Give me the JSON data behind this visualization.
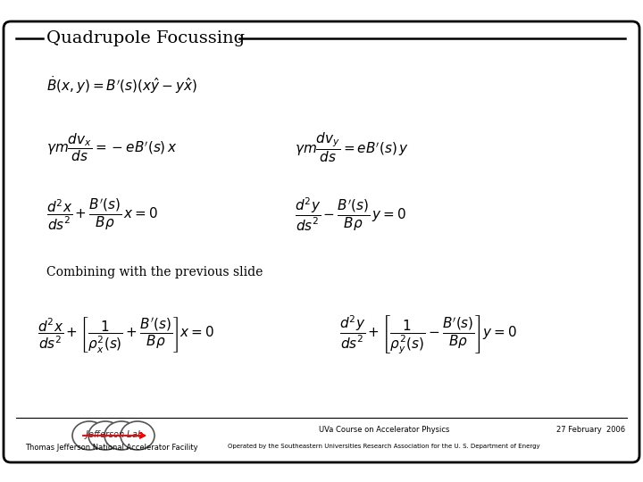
{
  "title": "Quadrupole Focussing",
  "background_color": "#ffffff",
  "border_color": "#000000",
  "text_color": "#000000",
  "combining_text": "Combining with the previous slide",
  "footer_left": "Thomas Jefferson National Accelerator Facility",
  "footer_center": "UVa Course on Accelerator Physics",
  "footer_right": "27 February  2006",
  "footer_center2": "Operated by the Southeastern Universities Research Association for the U. S. Department of Energy",
  "title_fontsize": 14,
  "eq_fontsize": 11,
  "combining_fontsize": 10,
  "footer_fontsize": 6
}
